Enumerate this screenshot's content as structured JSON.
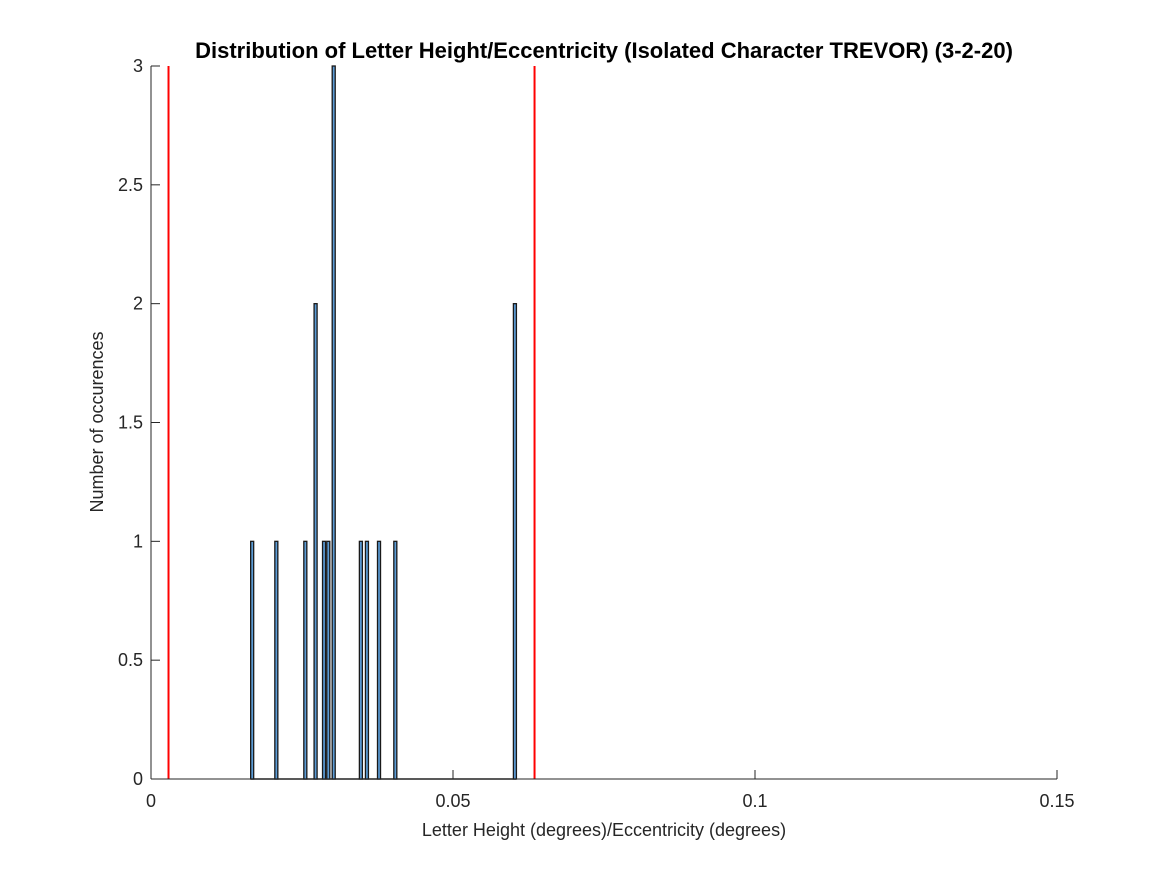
{
  "chart_data": {
    "type": "bar",
    "title": "Distribution of Letter Height/Eccentricity (Isolated Character TREVOR) (3-2-20)",
    "xlabel": "Letter Height (degrees)/Eccentricity (degrees)",
    "ylabel": "Number of occurences",
    "xlim": [
      0,
      0.15
    ],
    "ylim": [
      0,
      3
    ],
    "xticks": [
      0,
      0.05,
      0.1,
      0.15
    ],
    "xtick_labels": [
      "0",
      "0.05",
      "0.1",
      "0.15"
    ],
    "yticks": [
      0,
      0.5,
      1,
      1.5,
      2,
      2.5,
      3
    ],
    "ytick_labels": [
      "0",
      "0.5",
      "1",
      "1.5",
      "2",
      "2.5",
      "3"
    ],
    "bin_width": 0.0005,
    "bars": [
      {
        "x": 0.0165,
        "count": 1
      },
      {
        "x": 0.0205,
        "count": 1
      },
      {
        "x": 0.0253,
        "count": 1
      },
      {
        "x": 0.027,
        "count": 2
      },
      {
        "x": 0.0284,
        "count": 1
      },
      {
        "x": 0.0291,
        "count": 1
      },
      {
        "x": 0.03,
        "count": 3
      },
      {
        "x": 0.0345,
        "count": 1
      },
      {
        "x": 0.0355,
        "count": 1
      },
      {
        "x": 0.0375,
        "count": 1
      },
      {
        "x": 0.0402,
        "count": 1
      },
      {
        "x": 0.06,
        "count": 2
      }
    ],
    "reference_lines": [
      0.0029,
      0.0635
    ],
    "bar_color": "#5b9bd5",
    "bar_edge_color": "#1a1a1a",
    "reference_line_color": "#ff0000",
    "grid": false,
    "legend": "none"
  }
}
